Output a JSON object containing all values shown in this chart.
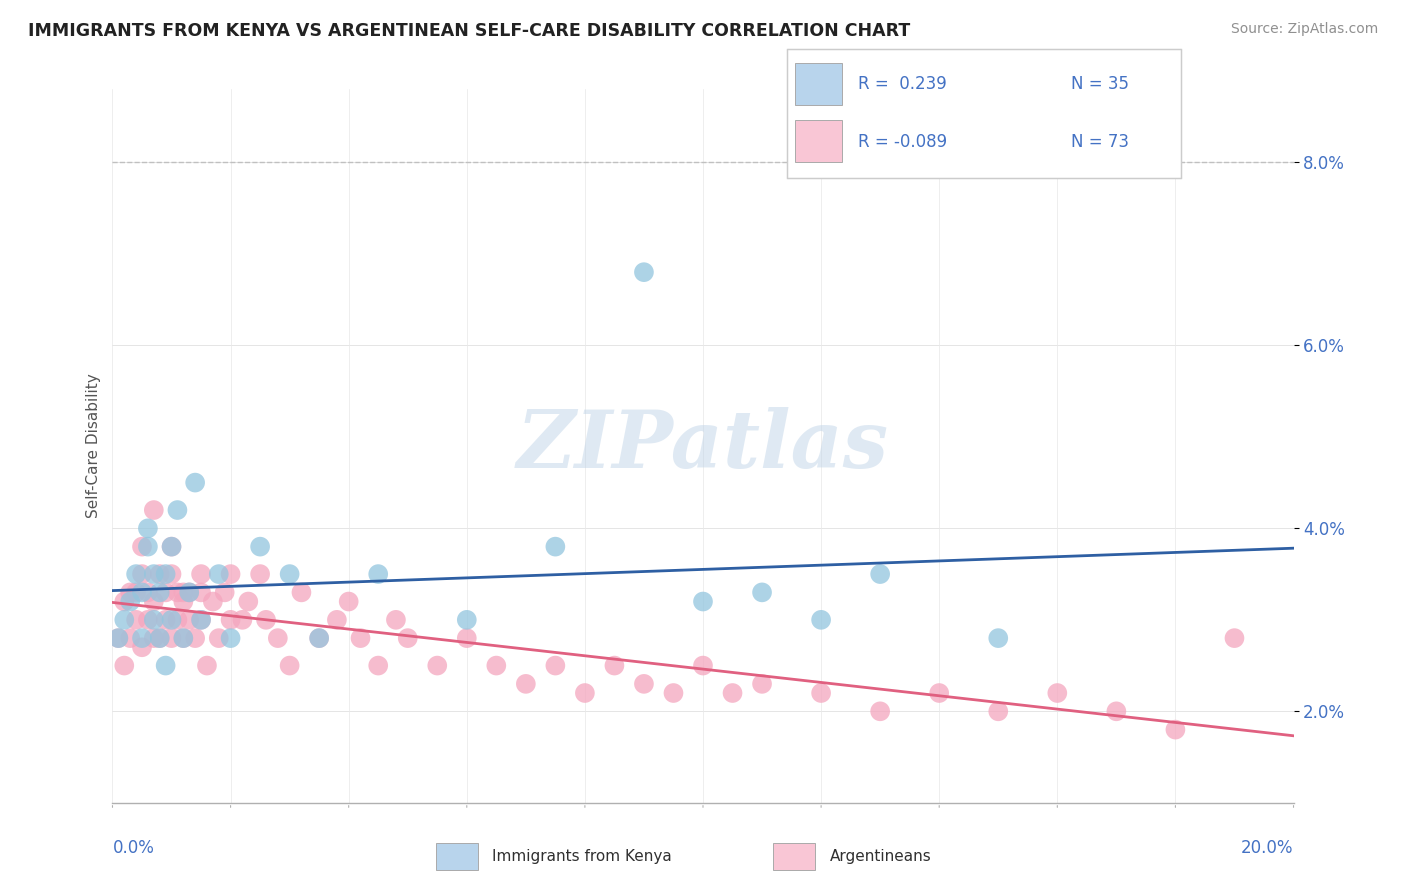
{
  "title": "IMMIGRANTS FROM KENYA VS ARGENTINEAN SELF-CARE DISABILITY CORRELATION CHART",
  "source": "Source: ZipAtlas.com",
  "ylabel": "Self-Care Disability",
  "xmin": 0.0,
  "xmax": 0.2,
  "ymin": 0.01,
  "ymax": 0.088,
  "yticks": [
    0.02,
    0.04,
    0.06,
    0.08
  ],
  "ytick_labels": [
    "2.0%",
    "4.0%",
    "6.0%",
    "8.0%"
  ],
  "color_kenya": "#92c5de",
  "color_argentina": "#f4a6be",
  "color_kenya_light": "#b8d4ec",
  "color_argentina_light": "#f9c6d5",
  "color_trend_kenya": "#2e5fa3",
  "color_trend_arg": "#e06080",
  "watermark": "ZIPatlas",
  "kenya_x": [
    0.001,
    0.002,
    0.003,
    0.004,
    0.005,
    0.005,
    0.006,
    0.006,
    0.007,
    0.007,
    0.008,
    0.008,
    0.009,
    0.009,
    0.01,
    0.01,
    0.011,
    0.012,
    0.013,
    0.014,
    0.015,
    0.018,
    0.02,
    0.025,
    0.03,
    0.035,
    0.045,
    0.06,
    0.075,
    0.09,
    0.1,
    0.11,
    0.12,
    0.13,
    0.15
  ],
  "kenya_y": [
    0.028,
    0.03,
    0.032,
    0.035,
    0.033,
    0.028,
    0.04,
    0.038,
    0.035,
    0.03,
    0.028,
    0.033,
    0.025,
    0.035,
    0.038,
    0.03,
    0.042,
    0.028,
    0.033,
    0.045,
    0.03,
    0.035,
    0.028,
    0.038,
    0.035,
    0.028,
    0.035,
    0.03,
    0.038,
    0.068,
    0.032,
    0.033,
    0.03,
    0.035,
    0.028
  ],
  "argentina_x": [
    0.001,
    0.002,
    0.002,
    0.003,
    0.003,
    0.004,
    0.004,
    0.005,
    0.005,
    0.006,
    0.006,
    0.007,
    0.007,
    0.008,
    0.008,
    0.009,
    0.009,
    0.01,
    0.01,
    0.011,
    0.011,
    0.012,
    0.012,
    0.013,
    0.013,
    0.014,
    0.015,
    0.015,
    0.016,
    0.017,
    0.018,
    0.019,
    0.02,
    0.022,
    0.023,
    0.025,
    0.026,
    0.028,
    0.03,
    0.032,
    0.035,
    0.038,
    0.04,
    0.042,
    0.045,
    0.048,
    0.05,
    0.055,
    0.06,
    0.065,
    0.07,
    0.075,
    0.08,
    0.085,
    0.09,
    0.095,
    0.1,
    0.105,
    0.11,
    0.12,
    0.13,
    0.14,
    0.15,
    0.16,
    0.17,
    0.18,
    0.19,
    0.005,
    0.007,
    0.01,
    0.012,
    0.015,
    0.02
  ],
  "argentina_y": [
    0.028,
    0.025,
    0.032,
    0.033,
    0.028,
    0.03,
    0.033,
    0.035,
    0.027,
    0.03,
    0.033,
    0.032,
    0.028,
    0.035,
    0.028,
    0.03,
    0.033,
    0.035,
    0.028,
    0.03,
    0.033,
    0.028,
    0.032,
    0.03,
    0.033,
    0.028,
    0.033,
    0.03,
    0.025,
    0.032,
    0.028,
    0.033,
    0.035,
    0.03,
    0.032,
    0.035,
    0.03,
    0.028,
    0.025,
    0.033,
    0.028,
    0.03,
    0.032,
    0.028,
    0.025,
    0.03,
    0.028,
    0.025,
    0.028,
    0.025,
    0.023,
    0.025,
    0.022,
    0.025,
    0.023,
    0.022,
    0.025,
    0.022,
    0.023,
    0.022,
    0.02,
    0.022,
    0.02,
    0.022,
    0.02,
    0.018,
    0.028,
    0.038,
    0.042,
    0.038,
    0.033,
    0.035,
    0.03
  ]
}
